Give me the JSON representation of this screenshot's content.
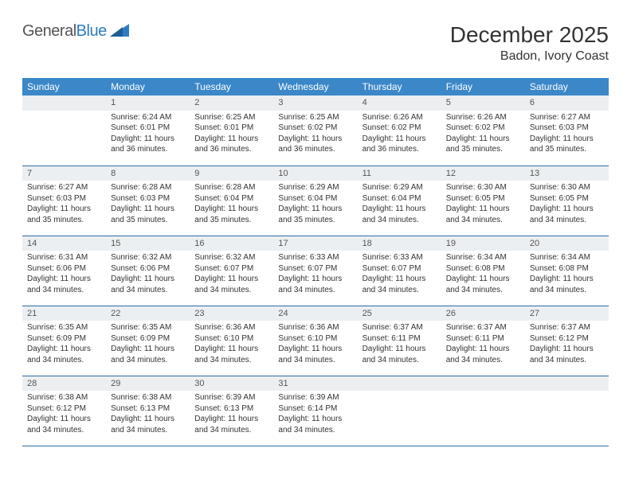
{
  "logo": {
    "part1": "General",
    "part2": "Blue"
  },
  "title": "December 2025",
  "location": "Badon, Ivory Coast",
  "colors": {
    "header_bg": "#3b87c8",
    "header_text": "#ffffff",
    "row_border": "#2e6da4",
    "daynum_bg": "#eceff1",
    "logo_gray": "#555555",
    "logo_blue": "#2e7cc0"
  },
  "layout": {
    "columns": 7,
    "rows": 5,
    "start_weekday": 1
  },
  "weekdays": [
    "Sunday",
    "Monday",
    "Tuesday",
    "Wednesday",
    "Thursday",
    "Friday",
    "Saturday"
  ],
  "days": [
    {
      "n": 1,
      "sunrise": "6:24 AM",
      "sunset": "6:01 PM",
      "daylight": "11 hours and 36 minutes."
    },
    {
      "n": 2,
      "sunrise": "6:25 AM",
      "sunset": "6:01 PM",
      "daylight": "11 hours and 36 minutes."
    },
    {
      "n": 3,
      "sunrise": "6:25 AM",
      "sunset": "6:02 PM",
      "daylight": "11 hours and 36 minutes."
    },
    {
      "n": 4,
      "sunrise": "6:26 AM",
      "sunset": "6:02 PM",
      "daylight": "11 hours and 36 minutes."
    },
    {
      "n": 5,
      "sunrise": "6:26 AM",
      "sunset": "6:02 PM",
      "daylight": "11 hours and 35 minutes."
    },
    {
      "n": 6,
      "sunrise": "6:27 AM",
      "sunset": "6:03 PM",
      "daylight": "11 hours and 35 minutes."
    },
    {
      "n": 7,
      "sunrise": "6:27 AM",
      "sunset": "6:03 PM",
      "daylight": "11 hours and 35 minutes."
    },
    {
      "n": 8,
      "sunrise": "6:28 AM",
      "sunset": "6:03 PM",
      "daylight": "11 hours and 35 minutes."
    },
    {
      "n": 9,
      "sunrise": "6:28 AM",
      "sunset": "6:04 PM",
      "daylight": "11 hours and 35 minutes."
    },
    {
      "n": 10,
      "sunrise": "6:29 AM",
      "sunset": "6:04 PM",
      "daylight": "11 hours and 35 minutes."
    },
    {
      "n": 11,
      "sunrise": "6:29 AM",
      "sunset": "6:04 PM",
      "daylight": "11 hours and 34 minutes."
    },
    {
      "n": 12,
      "sunrise": "6:30 AM",
      "sunset": "6:05 PM",
      "daylight": "11 hours and 34 minutes."
    },
    {
      "n": 13,
      "sunrise": "6:30 AM",
      "sunset": "6:05 PM",
      "daylight": "11 hours and 34 minutes."
    },
    {
      "n": 14,
      "sunrise": "6:31 AM",
      "sunset": "6:06 PM",
      "daylight": "11 hours and 34 minutes."
    },
    {
      "n": 15,
      "sunrise": "6:32 AM",
      "sunset": "6:06 PM",
      "daylight": "11 hours and 34 minutes."
    },
    {
      "n": 16,
      "sunrise": "6:32 AM",
      "sunset": "6:07 PM",
      "daylight": "11 hours and 34 minutes."
    },
    {
      "n": 17,
      "sunrise": "6:33 AM",
      "sunset": "6:07 PM",
      "daylight": "11 hours and 34 minutes."
    },
    {
      "n": 18,
      "sunrise": "6:33 AM",
      "sunset": "6:07 PM",
      "daylight": "11 hours and 34 minutes."
    },
    {
      "n": 19,
      "sunrise": "6:34 AM",
      "sunset": "6:08 PM",
      "daylight": "11 hours and 34 minutes."
    },
    {
      "n": 20,
      "sunrise": "6:34 AM",
      "sunset": "6:08 PM",
      "daylight": "11 hours and 34 minutes."
    },
    {
      "n": 21,
      "sunrise": "6:35 AM",
      "sunset": "6:09 PM",
      "daylight": "11 hours and 34 minutes."
    },
    {
      "n": 22,
      "sunrise": "6:35 AM",
      "sunset": "6:09 PM",
      "daylight": "11 hours and 34 minutes."
    },
    {
      "n": 23,
      "sunrise": "6:36 AM",
      "sunset": "6:10 PM",
      "daylight": "11 hours and 34 minutes."
    },
    {
      "n": 24,
      "sunrise": "6:36 AM",
      "sunset": "6:10 PM",
      "daylight": "11 hours and 34 minutes."
    },
    {
      "n": 25,
      "sunrise": "6:37 AM",
      "sunset": "6:11 PM",
      "daylight": "11 hours and 34 minutes."
    },
    {
      "n": 26,
      "sunrise": "6:37 AM",
      "sunset": "6:11 PM",
      "daylight": "11 hours and 34 minutes."
    },
    {
      "n": 27,
      "sunrise": "6:37 AM",
      "sunset": "6:12 PM",
      "daylight": "11 hours and 34 minutes."
    },
    {
      "n": 28,
      "sunrise": "6:38 AM",
      "sunset": "6:12 PM",
      "daylight": "11 hours and 34 minutes."
    },
    {
      "n": 29,
      "sunrise": "6:38 AM",
      "sunset": "6:13 PM",
      "daylight": "11 hours and 34 minutes."
    },
    {
      "n": 30,
      "sunrise": "6:39 AM",
      "sunset": "6:13 PM",
      "daylight": "11 hours and 34 minutes."
    },
    {
      "n": 31,
      "sunrise": "6:39 AM",
      "sunset": "6:14 PM",
      "daylight": "11 hours and 34 minutes."
    }
  ],
  "labels": {
    "sunrise": "Sunrise:",
    "sunset": "Sunset:",
    "daylight": "Daylight:"
  }
}
